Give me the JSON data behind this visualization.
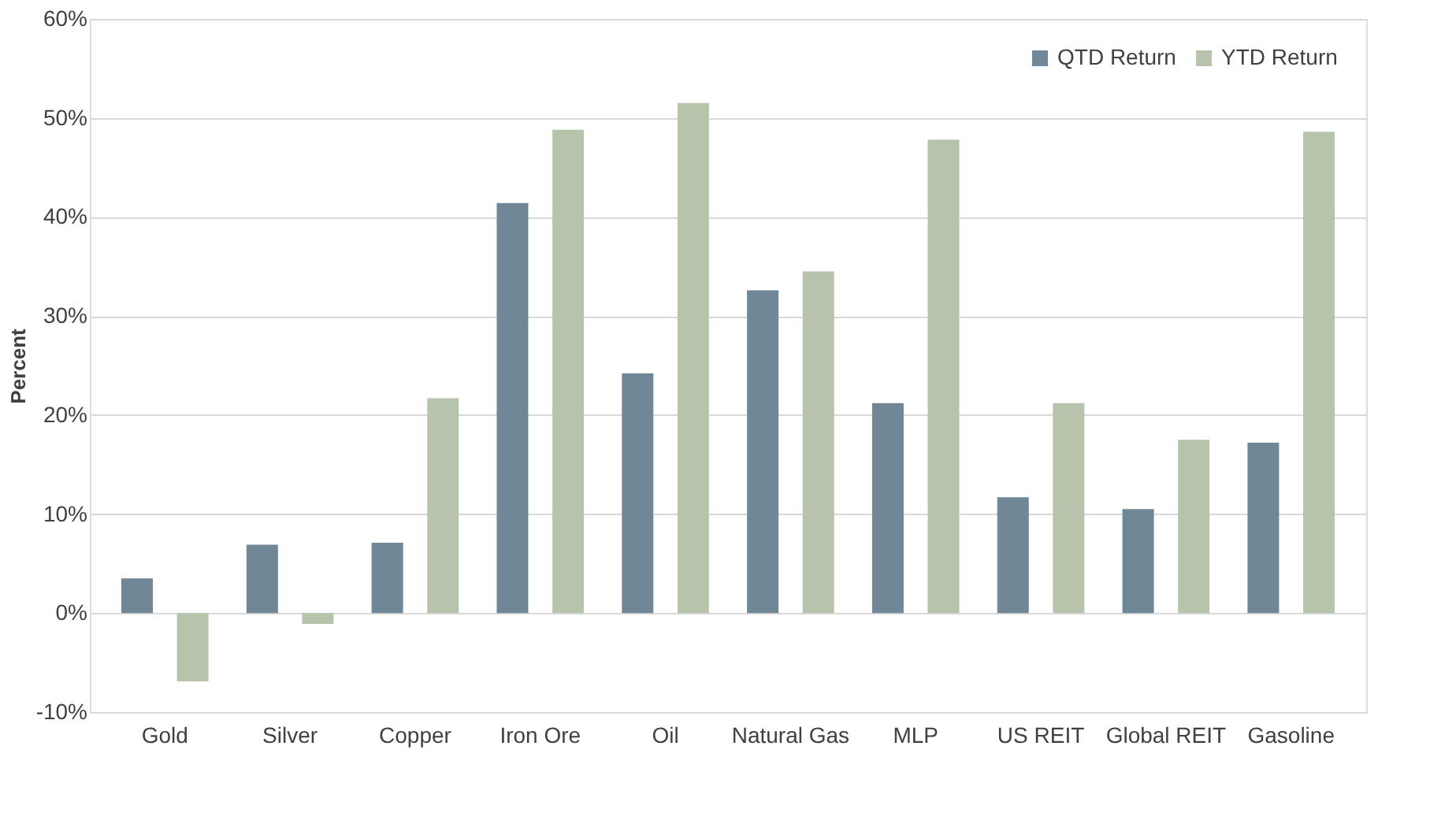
{
  "chart_data": {
    "type": "bar",
    "ylabel": "Percent",
    "categories": [
      "Gold",
      "Silver",
      "Copper",
      "Iron Ore",
      "Oil",
      "Natural Gas",
      "MLP",
      "US REIT",
      "Global REIT",
      "Gasoline"
    ],
    "series": [
      {
        "name": "QTD Return",
        "color": "#6f8797",
        "values": [
          3.5,
          6.9,
          7.1,
          41.4,
          24.2,
          32.6,
          21.2,
          11.7,
          10.5,
          17.2
        ]
      },
      {
        "name": "YTD Return",
        "color": "#b6c4ac",
        "values": [
          -6.9,
          -1.1,
          21.7,
          48.8,
          51.5,
          34.5,
          47.8,
          21.2,
          17.5,
          48.6
        ]
      }
    ],
    "ylim": [
      -10,
      60
    ],
    "yticks": [
      {
        "value": -10,
        "label": "-10%"
      },
      {
        "value": 0,
        "label": "0%"
      },
      {
        "value": 10,
        "label": "10%"
      },
      {
        "value": 20,
        "label": "20%"
      },
      {
        "value": 30,
        "label": "30%"
      },
      {
        "value": 40,
        "label": "40%"
      },
      {
        "value": 50,
        "label": "50%"
      },
      {
        "value": 60,
        "label": "60%"
      }
    ],
    "grid": "y",
    "legend": "top right"
  }
}
